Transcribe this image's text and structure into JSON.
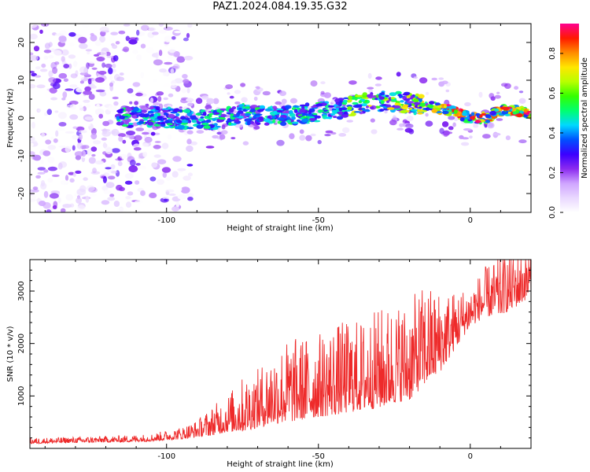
{
  "figure_title": "PAZ1.2024.084.19.35.G32",
  "chart_data": [
    {
      "type": "heatmap",
      "title": "",
      "xlabel": "Height of straight line (km)",
      "ylabel": "Frequency (Hz)",
      "xlim": [
        -145,
        20
      ],
      "ylim": [
        -25,
        25
      ],
      "x_ticks": [
        -100,
        -50,
        0
      ],
      "x_tick_labels": [
        "-100",
        "-50",
        "0"
      ],
      "y_ticks": [
        -20,
        -10,
        0,
        10,
        20
      ],
      "y_tick_labels": [
        "-20",
        "-10",
        "0",
        "10",
        "20"
      ],
      "colorbar": {
        "label": "Normalized spectral amplitude",
        "range": [
          0.0,
          0.95
        ],
        "ticks": [
          0.0,
          0.2,
          0.4,
          0.6,
          0.8
        ],
        "tick_labels": [
          "0.0",
          "0.2",
          "0.4",
          "0.6",
          "0.8"
        ],
        "colormap": [
          "#ffffff",
          "#e9d8ff",
          "#cfa5ff",
          "#8b2bef",
          "#3b00ff",
          "#0050ff",
          "#00d8ff",
          "#00ff70",
          "#33ff00",
          "#b8ff00",
          "#ffe600",
          "#ff8a00",
          "#ff1a00",
          "#ff0090"
        ]
      },
      "dominant_frequency_trace": {
        "x": [
          -115,
          -105,
          -95,
          -85,
          -75,
          -65,
          -55,
          -45,
          -35,
          -28,
          -20,
          -12,
          -5,
          0,
          5,
          10,
          15,
          20
        ],
        "y": [
          0,
          0.5,
          -0.5,
          -0.5,
          1,
          0.5,
          1,
          2,
          4,
          4.5,
          4,
          3,
          1.5,
          0,
          0,
          2,
          2,
          1
        ]
      },
      "noise_region_x": [
        -145,
        -100
      ],
      "grid": false
    },
    {
      "type": "line",
      "title": "",
      "xlabel": "Height of straight line (km)",
      "ylabel": "SNR (10 * v/v)",
      "xlim": [
        -145,
        20
      ],
      "ylim": [
        0,
        3600
      ],
      "x_ticks": [
        -100,
        -50,
        0
      ],
      "x_tick_labels": [
        "-100",
        "-50",
        "0"
      ],
      "y_ticks": [
        1000,
        2000,
        3000
      ],
      "y_tick_labels": [
        "1000",
        "2000",
        "3000"
      ],
      "line_color": "#ee2a2a",
      "series": [
        {
          "x": [
            -145,
            -130,
            -115,
            -105,
            -95,
            -90,
            -85,
            -80,
            -75,
            -70,
            -65,
            -60,
            -55,
            -50,
            -45,
            -40,
            -35,
            -30,
            -25,
            -20,
            -15,
            -10,
            -5,
            0,
            5,
            10,
            15,
            20
          ],
          "baseline": [
            100,
            120,
            130,
            150,
            200,
            250,
            300,
            380,
            420,
            500,
            600,
            650,
            700,
            750,
            800,
            850,
            900,
            950,
            1050,
            1100,
            1400,
            1600,
            2000,
            2400,
            2600,
            2650,
            2800,
            3000
          ],
          "spread": [
            70,
            70,
            80,
            90,
            150,
            200,
            350,
            450,
            650,
            700,
            900,
            1000,
            1000,
            1000,
            1100,
            1100,
            1100,
            1200,
            1200,
            1200,
            1200,
            1000,
            700,
            500,
            600,
            700,
            700,
            600
          ],
          "samples": 1300,
          "value_max": 3600
        }
      ],
      "grid": false
    }
  ]
}
